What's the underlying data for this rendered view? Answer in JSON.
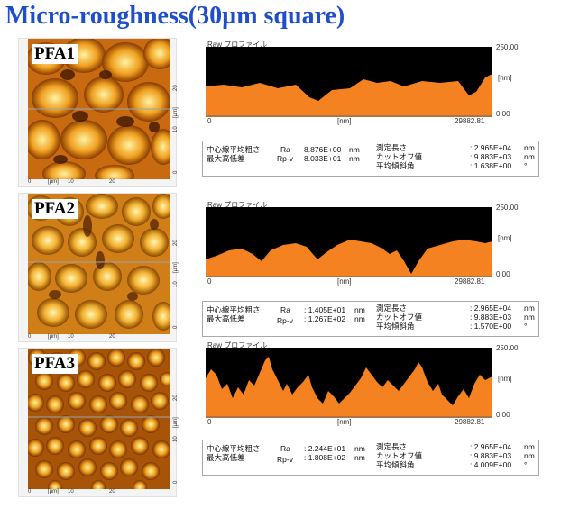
{
  "title": "Micro-roughness(30µm square)",
  "colors": {
    "title": "#1f4fc8",
    "profile_fill": "#f58220",
    "profile_bg": "#000000"
  },
  "panels": [
    {
      "label": "PFA1",
      "afm_axis": {
        "y_unit": "[µm]",
        "y_ticks": [
          "0",
          "10",
          "20"
        ],
        "x_unit": "[µm]",
        "x_ticks": [
          "0",
          "10",
          "20"
        ]
      },
      "profile": {
        "title": "Raw プロファイル",
        "y_max": "250.00",
        "y_min": "0.00",
        "y_unit": "[nm]",
        "x_min": "0",
        "x_unit": "[nm]",
        "x_max": "29882.81"
      },
      "stats": {
        "l1": "中心線平均粗さ",
        "l2": "最大高低差",
        "s1": "Ra",
        "s2": "Rp-v",
        "v1": "8.876E+00",
        "v2": "8.033E+01",
        "u1": "nm",
        "u2": "nm",
        "r1": "測定長さ",
        "r2": "カットオフ値",
        "r3": "平均傾斜角",
        "rv1": ": 2.965E+04",
        "rv2": ": 9.883E+03",
        "rv3": ": 1.638E+00",
        "ru1": "nm",
        "ru2": "nm",
        "ru3": "°"
      }
    },
    {
      "label": "PFA2",
      "afm_axis": {
        "y_unit": "[µm]",
        "y_ticks": [
          "0",
          "10",
          "20"
        ],
        "x_unit": "[µm]",
        "x_ticks": [
          "0",
          "10",
          "20"
        ]
      },
      "profile": {
        "title": "Raw プロファイル",
        "y_max": "250.00",
        "y_min": "0.00",
        "y_unit": "[nm]",
        "x_min": "0",
        "x_unit": "[nm]",
        "x_max": "29882.81"
      },
      "stats": {
        "l1": "中心線平均粗さ",
        "l2": "最大高低差",
        "s1": "Ra",
        "s2": "Rp-v",
        "v1": ": 1.405E+01",
        "v2": ": 1.267E+02",
        "u1": "nm",
        "u2": "nm",
        "r1": "測定長さ",
        "r2": "カットオフ値",
        "r3": "平均傾斜角",
        "rv1": ": 2.965E+04",
        "rv2": ": 9.883E+03",
        "rv3": ": 1.570E+00",
        "ru1": "nm",
        "ru2": "nm",
        "ru3": "°"
      }
    },
    {
      "label": "PFA3",
      "afm_axis": {
        "y_unit": "[µm]",
        "y_ticks": [
          "0",
          "10",
          "20"
        ],
        "x_unit": "[µm]",
        "x_ticks": [
          "0",
          "10",
          "20"
        ]
      },
      "profile": {
        "title": "Raw プロファイル",
        "y_max": "250.00",
        "y_min": "0.00",
        "y_unit": "[nm]",
        "x_min": "0",
        "x_unit": "[nm]",
        "x_max": "29882.81"
      },
      "stats": {
        "l1": "中心線平均粗さ",
        "l2": "最大高低差",
        "s1": "Ra",
        "s2": "Rp-v",
        "v1": ": 2.244E+01",
        "v2": ": 1.808E+02",
        "u1": "nm",
        "u2": "nm",
        "r1": "測定長さ",
        "r2": "カットオフ値",
        "r3": "平均傾斜角",
        "rv1": ": 2.965E+04",
        "rv2": ": 9.883E+03",
        "rv3": ": 4.009E+00",
        "ru1": "nm",
        "ru2": "nm",
        "ru3": "°"
      }
    }
  ]
}
